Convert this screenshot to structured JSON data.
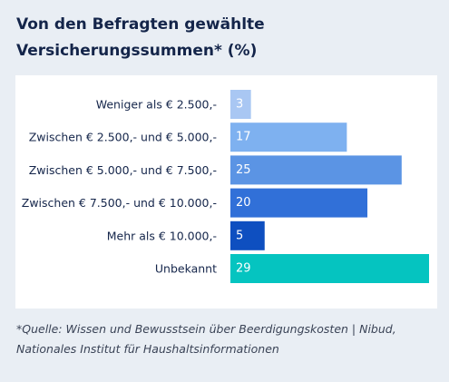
{
  "page": {
    "title_line1": "Von den Befragten gewählte",
    "title_line2": "Versicherungssummen* (%)",
    "source_line1": "*Quelle: Wissen und Bewusstsein über Beerdigungskosten | Nibud,",
    "source_line2": "Nationales Institut für Haushaltsinformationen"
  },
  "chart_data": {
    "type": "bar",
    "orientation": "horizontal",
    "title": "Von den Befragten gewählte Versicherungssummen* (%)",
    "categories": [
      "Weniger als € 2.500,-",
      "Zwischen € 2.500,- und € 5.000,-",
      "Zwischen € 5.000,- und € 7.500,-",
      "Zwischen € 7.500,- und € 10.000,-",
      "Mehr als € 10.000,-",
      "Unbekannt"
    ],
    "values": [
      3,
      17,
      25,
      20,
      5,
      29
    ],
    "colors": [
      "#a9c7f3",
      "#7eb1f0",
      "#5b94e4",
      "#3170d8",
      "#0e4fc0",
      "#05c4c0"
    ],
    "xlim": [
      0,
      29
    ],
    "data_labels": true,
    "grid": false,
    "legend": "none"
  }
}
